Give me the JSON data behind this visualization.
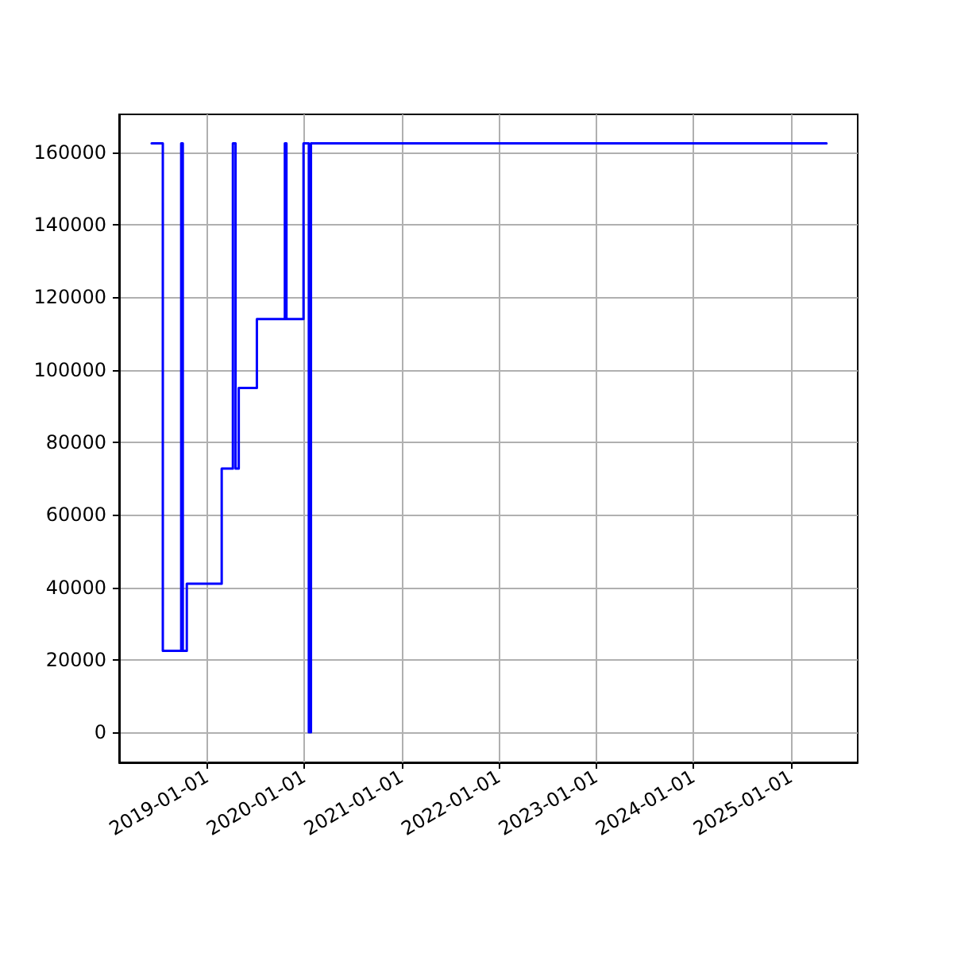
{
  "chart_data": {
    "type": "step",
    "color": "#0000ff",
    "line_style": "solid",
    "marker": "none",
    "grid": true,
    "x": [
      "2018-06-08",
      "2018-07-20",
      "2018-09-27",
      "2018-10-03",
      "2018-10-18",
      "2019-02-26",
      "2019-04-09",
      "2019-04-19",
      "2019-05-01",
      "2019-07-08",
      "2019-10-21",
      "2019-10-27",
      "2019-12-30",
      "2020-01-19",
      "2020-01-27",
      "2025-05-15"
    ],
    "values": [
      162500,
      22500,
      162500,
      22500,
      41000,
      72800,
      162500,
      72800,
      95000,
      114000,
      162500,
      114000,
      162500,
      0,
      162500,
      162500
    ],
    "xlim": [
      "2018-02-06",
      "2025-09-09"
    ],
    "xticks": [
      "2019-01-01",
      "2020-01-01",
      "2021-01-01",
      "2022-01-01",
      "2023-01-01",
      "2024-01-01",
      "2025-01-01"
    ],
    "ylim": [
      -8300,
      170500
    ],
    "yticks": [
      0,
      20000,
      40000,
      60000,
      80000,
      100000,
      120000,
      140000,
      160000
    ]
  }
}
